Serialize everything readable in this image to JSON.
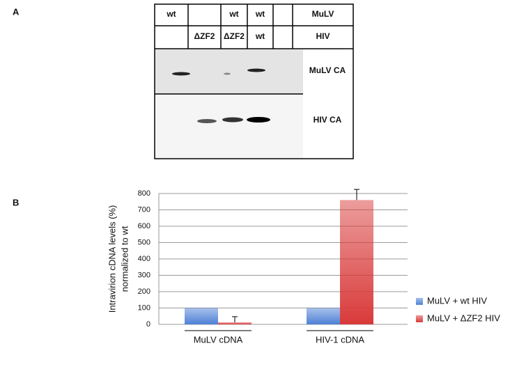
{
  "panel_a": {
    "label": "A",
    "table": {
      "rows": [
        [
          "wt",
          null,
          "wt",
          "wt",
          null,
          "MuLV"
        ],
        [
          null,
          "ΔZF2",
          "ΔZF2",
          "wt",
          null,
          "HIV"
        ]
      ]
    },
    "blots": [
      {
        "label": "MuLV CA"
      },
      {
        "label": "HIV CA"
      }
    ]
  },
  "panel_b": {
    "label": "B"
  },
  "chart_data": {
    "type": "bar",
    "ylabel": [
      "Intravirion cDNA levels (%)",
      "normalized to wt"
    ],
    "categories": [
      "MuLV cDNA",
      "HIV-1 cDNA"
    ],
    "series": [
      {
        "name": "MuLV + wt HIV",
        "color": "#4f81d6",
        "values": [
          100,
          100
        ]
      },
      {
        "name": "MuLV + ΔZF2 HIV",
        "color": "#d93a3a",
        "values": [
          12,
          760
        ],
        "errors": [
          35,
          65
        ]
      }
    ],
    "ylim": [
      0,
      800
    ],
    "yticks": [
      0,
      100,
      200,
      300,
      400,
      500,
      600,
      700,
      800
    ],
    "grid": true,
    "legend": "right"
  }
}
